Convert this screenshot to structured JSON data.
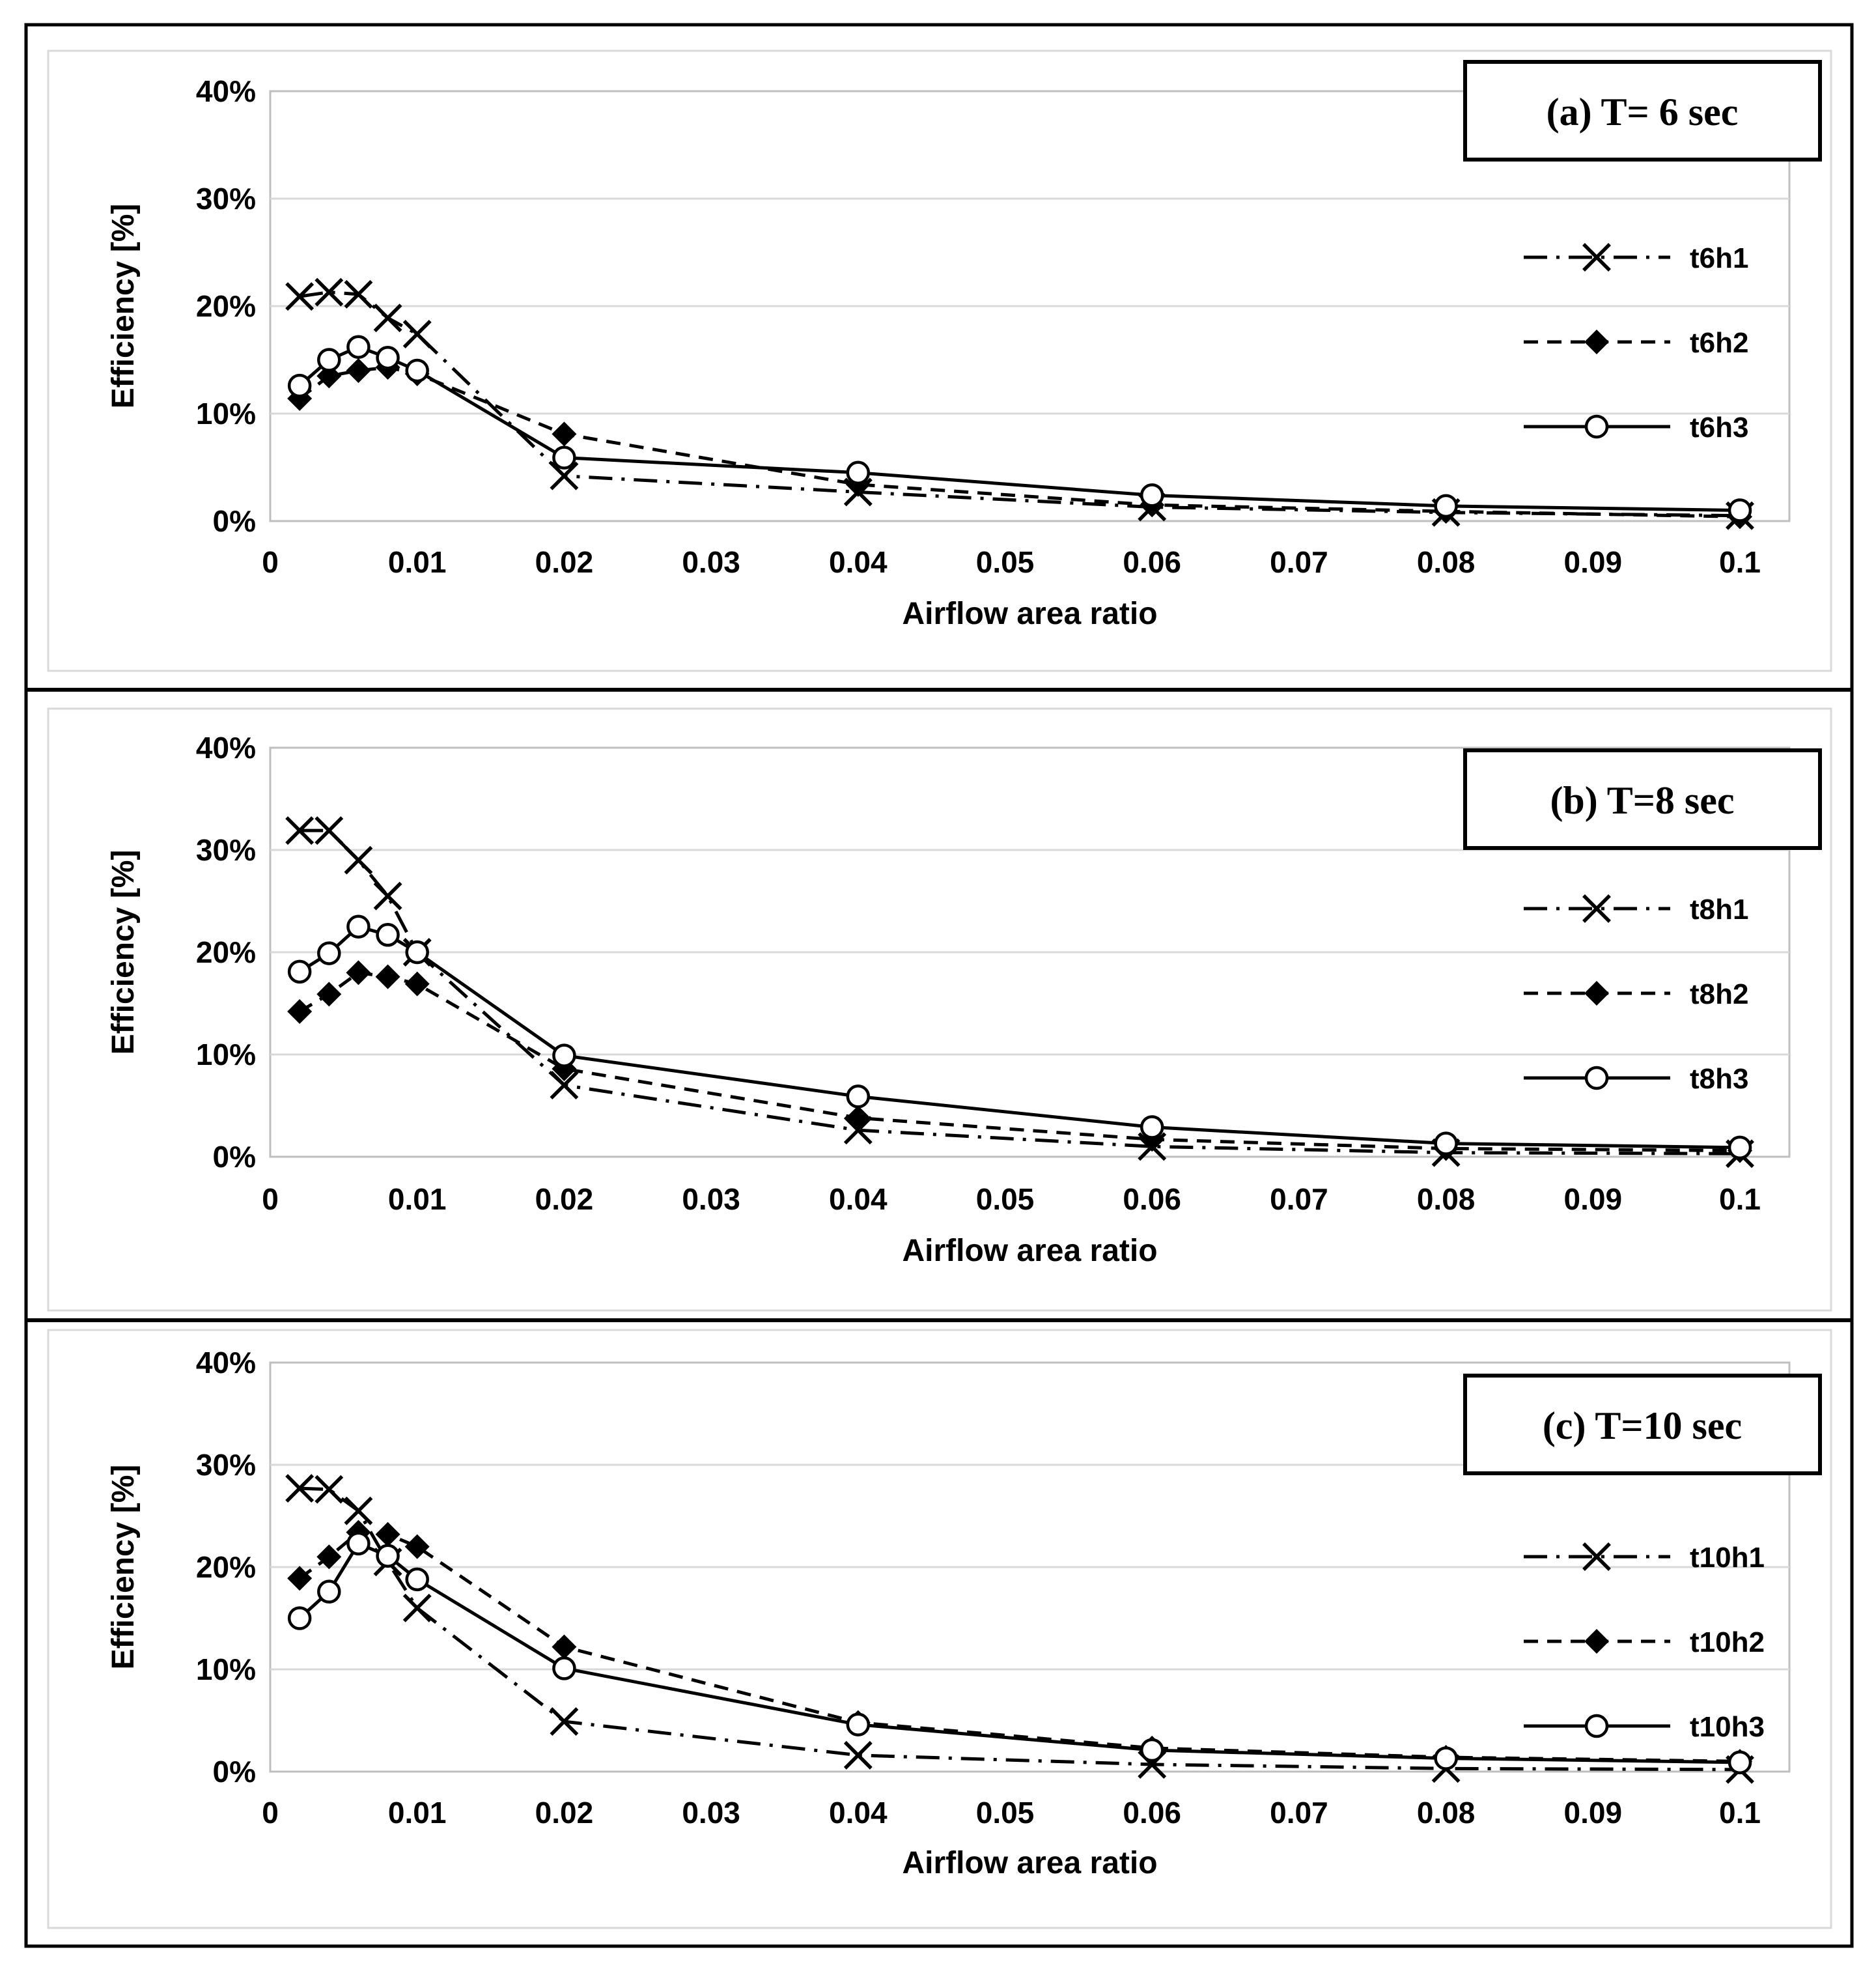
{
  "figure": {
    "description": "Three stacked line charts of efficiency versus airflow area ratio for wave periods 6, 8 and 10 seconds",
    "background_color": "#ffffff",
    "frame_color": "#000000",
    "gridline_color": "#d9d9d9",
    "plot_border_color": "#bfbfbf",
    "series_color": "#000000"
  },
  "chart_data": [
    {
      "type": "line",
      "panel_label": "(a) T= 6 sec",
      "xlabel": "Airflow area ratio",
      "ylabel": "Efficiency [%]",
      "ylim": [
        0,
        40
      ],
      "xlim": [
        0,
        0.1
      ],
      "grid": "horizontal",
      "legend_position": "inside-right",
      "y_ticks": [
        "0%",
        "10%",
        "20%",
        "30%",
        "40%"
      ],
      "x_ticks": [
        "0",
        "0.01",
        "0.02",
        "0.03",
        "0.04",
        "0.05",
        "0.06",
        "0.07",
        "0.08",
        "0.09",
        "0.1"
      ],
      "x": [
        0.002,
        0.004,
        0.006,
        0.008,
        0.01,
        0.02,
        0.04,
        0.06,
        0.08,
        0.1
      ],
      "series": [
        {
          "name": "t6h1",
          "marker": "x",
          "line": "long-dash-dot",
          "values": [
            20.9,
            21.3,
            21.1,
            18.9,
            17.4,
            4.2,
            2.7,
            1.3,
            0.8,
            0.5
          ]
        },
        {
          "name": "t6h2",
          "marker": "diamond",
          "line": "dash",
          "values": [
            11.4,
            13.5,
            14.0,
            14.3,
            13.7,
            8.1,
            3.4,
            1.5,
            0.9,
            0.4
          ]
        },
        {
          "name": "t6h3",
          "marker": "circle",
          "line": "solid",
          "values": [
            12.6,
            15.0,
            16.2,
            15.2,
            14.0,
            5.9,
            4.5,
            2.4,
            1.4,
            1.0
          ]
        }
      ]
    },
    {
      "type": "line",
      "panel_label": "(b) T=8 sec",
      "xlabel": "Airflow area ratio",
      "ylabel": "Efficiency [%]",
      "ylim": [
        0,
        40
      ],
      "xlim": [
        0,
        0.1
      ],
      "grid": "horizontal",
      "legend_position": "inside-right",
      "y_ticks": [
        "0%",
        "10%",
        "20%",
        "30%",
        "40%"
      ],
      "x_ticks": [
        "0",
        "0.01",
        "0.02",
        "0.03",
        "0.04",
        "0.05",
        "0.06",
        "0.07",
        "0.08",
        "0.09",
        "0.1"
      ],
      "x": [
        0.002,
        0.004,
        0.006,
        0.008,
        0.01,
        0.02,
        0.04,
        0.06,
        0.08,
        0.1
      ],
      "series": [
        {
          "name": "t8h1",
          "marker": "x",
          "line": "long-dash-dot",
          "values": [
            31.9,
            31.9,
            29.0,
            25.5,
            20.0,
            7.0,
            2.6,
            1.0,
            0.4,
            0.3
          ]
        },
        {
          "name": "t8h2",
          "marker": "diamond",
          "line": "dash",
          "values": [
            14.2,
            15.9,
            18.0,
            17.6,
            16.9,
            8.6,
            3.8,
            1.7,
            0.8,
            0.6
          ]
        },
        {
          "name": "t8h3",
          "marker": "circle",
          "line": "solid",
          "values": [
            18.1,
            19.9,
            22.5,
            21.7,
            20.0,
            9.9,
            5.9,
            2.9,
            1.3,
            0.9
          ]
        }
      ]
    },
    {
      "type": "line",
      "panel_label": "(c) T=10 sec",
      "xlabel": "Airflow area ratio",
      "ylabel": "Efficiency [%]",
      "ylim": [
        0,
        40
      ],
      "xlim": [
        0,
        0.1
      ],
      "grid": "horizontal",
      "legend_position": "inside-right",
      "y_ticks": [
        "0%",
        "10%",
        "20%",
        "30%",
        "40%"
      ],
      "x_ticks": [
        "0",
        "0.01",
        "0.02",
        "0.03",
        "0.04",
        "0.05",
        "0.06",
        "0.07",
        "0.08",
        "0.09",
        "0.1"
      ],
      "x": [
        0.002,
        0.004,
        0.006,
        0.008,
        0.01,
        0.02,
        0.04,
        0.06,
        0.08,
        0.1
      ],
      "series": [
        {
          "name": "t10h1",
          "marker": "x",
          "line": "long-dash-dot",
          "values": [
            27.7,
            27.6,
            25.5,
            20.5,
            16.0,
            4.9,
            1.6,
            0.7,
            0.3,
            0.2
          ]
        },
        {
          "name": "t10h2",
          "marker": "diamond",
          "line": "dash",
          "values": [
            18.9,
            21.0,
            23.4,
            23.2,
            22.0,
            12.2,
            4.8,
            2.3,
            1.4,
            1.0
          ]
        },
        {
          "name": "t10h3",
          "marker": "circle",
          "line": "solid",
          "values": [
            15.0,
            17.6,
            22.3,
            21.1,
            18.8,
            10.1,
            4.6,
            2.1,
            1.3,
            0.9
          ]
        }
      ]
    }
  ]
}
